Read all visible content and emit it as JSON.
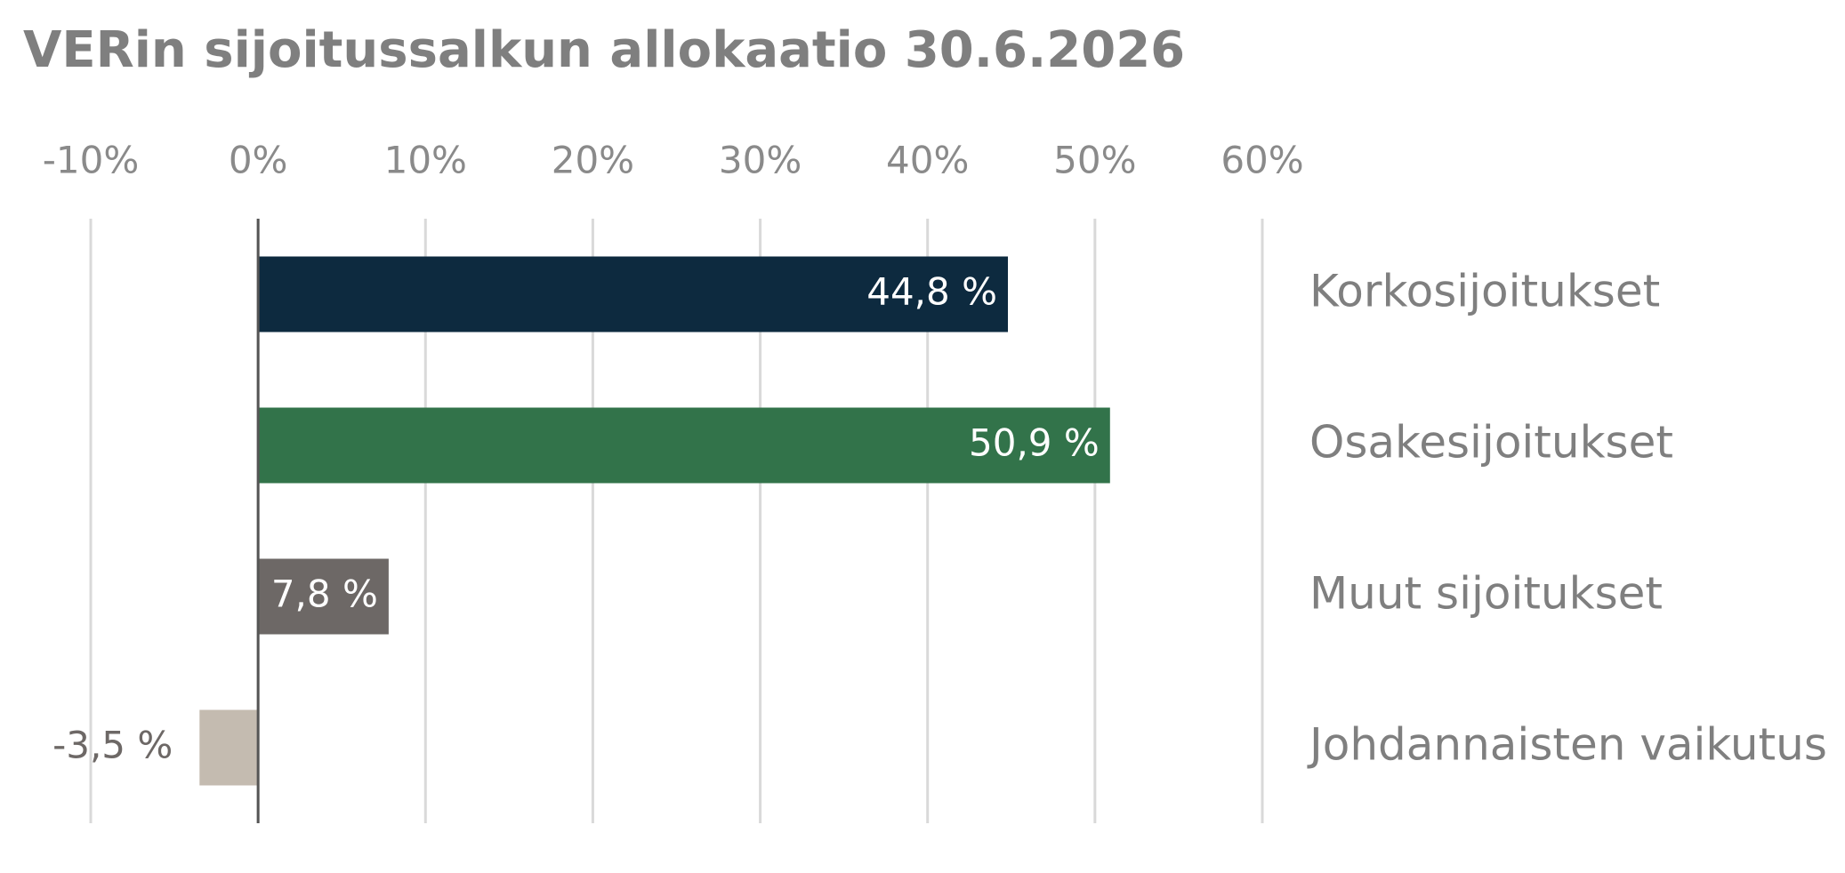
{
  "chart_data": {
    "type": "hbar",
    "title": "VERin sijoitussalkun allokaatio 30.6.2026",
    "categories": [
      "Korkosijoitukset",
      "Osakesijoitukset",
      "Muut sijoitukset",
      "Johdannaisten vaikutus"
    ],
    "values": [
      44.8,
      50.9,
      7.8,
      -3.5
    ],
    "value_labels": [
      "44,8 %",
      "50,9 %",
      "7,8 %",
      "-3,5 %"
    ],
    "colors": [
      "#0d2a3f",
      "#32734a",
      "#6d6866",
      "#c4bbb0"
    ],
    "xlim": [
      -10,
      60
    ],
    "xticks": [
      {
        "value": -10,
        "label": "-10%"
      },
      {
        "value": 0,
        "label": "0%"
      },
      {
        "value": 10,
        "label": "10%"
      },
      {
        "value": 20,
        "label": "20%"
      },
      {
        "value": 30,
        "label": "30%"
      },
      {
        "value": 40,
        "label": "40%"
      },
      {
        "value": 50,
        "label": "50%"
      },
      {
        "value": 60,
        "label": "60%"
      }
    ],
    "grid": true
  }
}
